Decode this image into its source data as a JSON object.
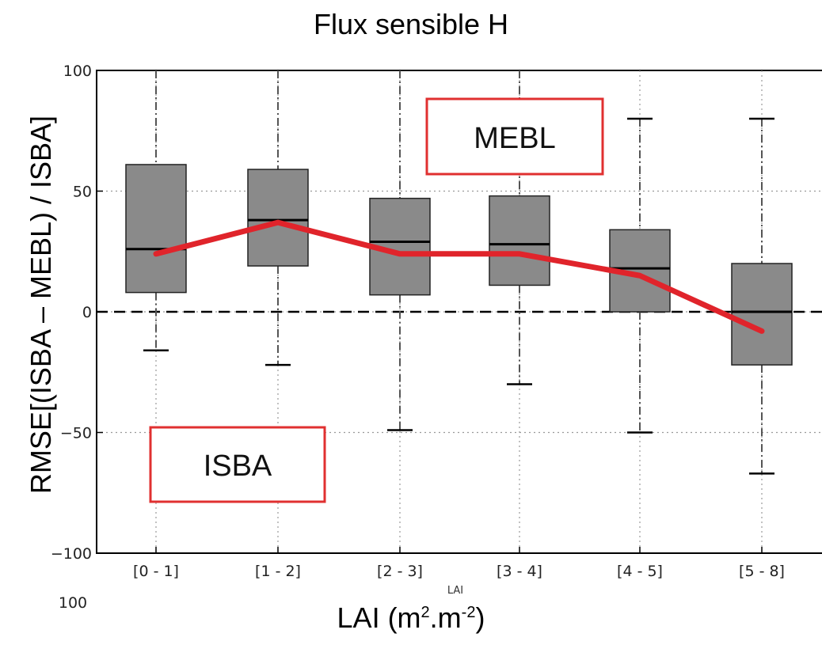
{
  "title": "Flux sensible H",
  "chart_data": {
    "type": "box",
    "title": "Flux sensible H",
    "ylabel": "RMSE[(ISBA – MEBL) / ISBA]",
    "xlabel": "LAI",
    "xlabel_below": "LAI (m².m⁻²)",
    "xlabel_below_parts": {
      "base": "LAI (m",
      "sup1": "2",
      "mid": ".m",
      "sup2": "-2",
      "end": ")"
    },
    "ylim": [
      -100,
      100
    ],
    "yticks": [
      -100,
      -50,
      0,
      50,
      100
    ],
    "ytick_labels": [
      "−100",
      "−50",
      "0",
      "50",
      "100"
    ],
    "categories": [
      "[0 - 1]",
      "[1 - 2]",
      "[2 - 3]",
      "[3 - 4]",
      "[4 - 5]",
      "[5 - 8]"
    ],
    "boxes": [
      {
        "whisker_low": -16,
        "q1": 8,
        "median": 26,
        "q3": 61,
        "whisker_high": 100
      },
      {
        "whisker_low": -22,
        "q1": 19,
        "median": 38,
        "q3": 59,
        "whisker_high": 100
      },
      {
        "whisker_low": -49,
        "q1": 7,
        "median": 29,
        "q3": 47,
        "whisker_high": 100
      },
      {
        "whisker_low": -30,
        "q1": 11,
        "median": 28,
        "q3": 48,
        "whisker_high": 100
      },
      {
        "whisker_low": -50,
        "q1": 0,
        "median": 18,
        "q3": 34,
        "whisker_high": 80
      },
      {
        "whisker_low": -67,
        "q1": -22,
        "median": 0,
        "q3": 20,
        "whisker_high": 80
      }
    ],
    "line": {
      "color": "#e0242b",
      "values": [
        24,
        37,
        24,
        24,
        15,
        -8
      ]
    },
    "reference_line": {
      "y": 0,
      "style": "dashed"
    },
    "grid": true,
    "annotations": [
      "MEBL",
      "ISBA"
    ],
    "annotation_border_color": "#e03030",
    "box_fill": "#8a8a8a",
    "bottom_fragment": "100"
  }
}
